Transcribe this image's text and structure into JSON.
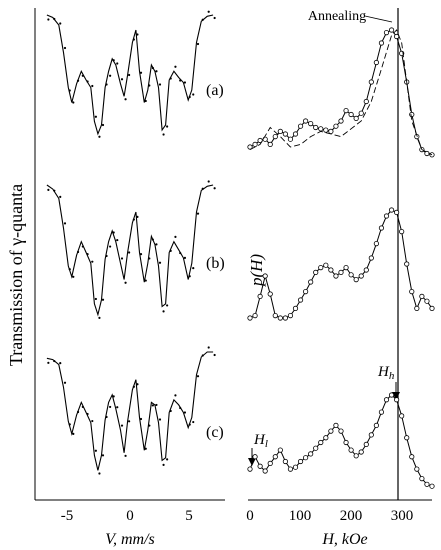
{
  "figure": {
    "y_label_left": "Transmission of γ-quanta",
    "y_label_right": "p(H)",
    "annotation_annealing": "Annealing",
    "annotation_hl": "Hl",
    "annotation_hh": "Hh",
    "panel_labels": [
      "(a)",
      "(b)",
      "(c)"
    ]
  },
  "chart_data": [
    {
      "type": "scatter",
      "panel": "left",
      "xlabel": "V, mm/s",
      "ylabel": "Transmission of γ-quanta",
      "xlim": [
        -8,
        8
      ],
      "x_ticks": [
        -5,
        0,
        5
      ],
      "subplots": [
        {
          "label": "(a)",
          "fit_x": [
            -7,
            -6.5,
            -6,
            -5.6,
            -5.2,
            -4.9,
            -4.5,
            -4.1,
            -3.7,
            -3.3,
            -3.0,
            -2.7,
            -2.4,
            -2.1,
            -1.8,
            -1.5,
            -1.2,
            -0.8,
            -0.5,
            -0.2,
            0.2,
            0.5,
            0.8,
            1.2,
            1.5,
            1.8,
            2.1,
            2.4,
            2.7,
            3.0,
            3.3,
            3.7,
            4.1,
            4.5,
            4.9,
            5.2,
            5.6,
            6.0,
            6.5,
            7.0
          ],
          "fit_y": [
            1.0,
            0.98,
            0.92,
            0.7,
            0.42,
            0.3,
            0.45,
            0.55,
            0.48,
            0.42,
            0.15,
            0.05,
            0.12,
            0.42,
            0.55,
            0.65,
            0.6,
            0.45,
            0.35,
            0.52,
            0.78,
            0.88,
            0.55,
            0.3,
            0.4,
            0.6,
            0.55,
            0.42,
            0.08,
            0.12,
            0.48,
            0.55,
            0.5,
            0.46,
            0.32,
            0.4,
            0.78,
            0.95,
            0.99,
            1.0
          ]
        },
        {
          "label": "(b)",
          "fit_x": [
            -7,
            -6.5,
            -6,
            -5.6,
            -5.2,
            -4.9,
            -4.5,
            -4.1,
            -3.7,
            -3.3,
            -3.0,
            -2.7,
            -2.4,
            -2.1,
            -1.8,
            -1.5,
            -1.2,
            -0.8,
            -0.5,
            -0.2,
            0.2,
            0.5,
            0.8,
            1.2,
            1.5,
            1.8,
            2.1,
            2.4,
            2.7,
            3.0,
            3.3,
            3.7,
            4.1,
            4.5,
            4.9,
            5.2,
            5.6,
            6.0,
            6.5,
            7.0
          ],
          "fit_y": [
            1.0,
            0.97,
            0.9,
            0.68,
            0.4,
            0.32,
            0.48,
            0.58,
            0.5,
            0.42,
            0.12,
            0.04,
            0.15,
            0.45,
            0.58,
            0.66,
            0.58,
            0.42,
            0.3,
            0.5,
            0.72,
            0.8,
            0.5,
            0.28,
            0.42,
            0.62,
            0.56,
            0.4,
            0.1,
            0.12,
            0.5,
            0.58,
            0.52,
            0.46,
            0.3,
            0.42,
            0.8,
            0.96,
            0.99,
            1.0
          ]
        },
        {
          "label": "(c)",
          "fit_x": [
            -7,
            -6.5,
            -6,
            -5.6,
            -5.2,
            -4.9,
            -4.5,
            -4.1,
            -3.7,
            -3.3,
            -3.0,
            -2.7,
            -2.4,
            -2.1,
            -1.8,
            -1.5,
            -1.2,
            -0.8,
            -0.5,
            -0.2,
            0.2,
            0.5,
            0.8,
            1.2,
            1.5,
            1.8,
            2.1,
            2.4,
            2.7,
            3.0,
            3.3,
            3.7,
            4.1,
            4.5,
            4.9,
            5.2,
            5.6,
            6.0,
            6.5,
            7.0
          ],
          "fit_y": [
            0.95,
            0.94,
            0.9,
            0.72,
            0.45,
            0.35,
            0.5,
            0.6,
            0.52,
            0.44,
            0.18,
            0.06,
            0.18,
            0.46,
            0.6,
            0.66,
            0.55,
            0.38,
            0.2,
            0.45,
            0.7,
            0.78,
            0.48,
            0.22,
            0.38,
            0.6,
            0.58,
            0.44,
            0.14,
            0.16,
            0.52,
            0.62,
            0.58,
            0.52,
            0.4,
            0.48,
            0.82,
            0.96,
            1.0,
            1.0
          ]
        }
      ]
    },
    {
      "type": "line",
      "panel": "right",
      "xlabel": "H, kOe",
      "ylabel": "p(H)",
      "xlim": [
        0,
        360
      ],
      "x_ticks": [
        0,
        100,
        200,
        300
      ],
      "vertical_line_x": 290,
      "subplots": [
        {
          "x": [
            0,
            10,
            20,
            30,
            40,
            50,
            60,
            70,
            80,
            90,
            100,
            110,
            120,
            130,
            140,
            150,
            160,
            170,
            180,
            190,
            200,
            210,
            220,
            230,
            240,
            250,
            260,
            270,
            280,
            290,
            300,
            310,
            320,
            330,
            340,
            350,
            360
          ],
          "y": [
            0.1,
            0.12,
            0.15,
            0.16,
            0.12,
            0.18,
            0.22,
            0.2,
            0.16,
            0.2,
            0.26,
            0.3,
            0.28,
            0.25,
            0.24,
            0.23,
            0.22,
            0.26,
            0.3,
            0.38,
            0.35,
            0.32,
            0.36,
            0.45,
            0.6,
            0.75,
            0.9,
            0.98,
            1.0,
            0.95,
            0.82,
            0.6,
            0.35,
            0.18,
            0.08,
            0.05,
            0.04
          ],
          "annealing_x": [
            0,
            20,
            40,
            60,
            80,
            100,
            120,
            140,
            160,
            180,
            200,
            220,
            240,
            260,
            280,
            290,
            300,
            310,
            320,
            340,
            360
          ],
          "annealing_y": [
            0.08,
            0.12,
            0.25,
            0.18,
            0.1,
            0.12,
            0.18,
            0.22,
            0.2,
            0.18,
            0.24,
            0.3,
            0.45,
            0.7,
            0.96,
            1.0,
            0.9,
            0.6,
            0.3,
            0.08,
            0.04
          ]
        },
        {
          "x": [
            0,
            10,
            20,
            30,
            40,
            50,
            60,
            70,
            80,
            90,
            100,
            110,
            120,
            130,
            140,
            150,
            160,
            170,
            180,
            190,
            200,
            210,
            220,
            230,
            240,
            250,
            260,
            270,
            280,
            290,
            300,
            310,
            320,
            330,
            340,
            350,
            360
          ],
          "y": [
            0.1,
            0.12,
            0.28,
            0.45,
            0.3,
            0.12,
            0.1,
            0.1,
            0.12,
            0.18,
            0.25,
            0.32,
            0.4,
            0.48,
            0.52,
            0.54,
            0.5,
            0.45,
            0.48,
            0.52,
            0.46,
            0.42,
            0.45,
            0.5,
            0.6,
            0.72,
            0.85,
            0.95,
            1.0,
            0.98,
            0.82,
            0.55,
            0.32,
            0.18,
            0.28,
            0.24,
            0.18
          ]
        },
        {
          "x": [
            0,
            10,
            20,
            30,
            40,
            50,
            60,
            70,
            80,
            90,
            100,
            110,
            120,
            130,
            140,
            150,
            160,
            170,
            180,
            190,
            200,
            210,
            220,
            230,
            240,
            250,
            260,
            270,
            280,
            290,
            300,
            310,
            320,
            330,
            340,
            350,
            360
          ],
          "y": [
            0.22,
            0.35,
            0.25,
            0.2,
            0.28,
            0.35,
            0.42,
            0.3,
            0.22,
            0.24,
            0.3,
            0.34,
            0.38,
            0.44,
            0.5,
            0.55,
            0.62,
            0.68,
            0.62,
            0.5,
            0.42,
            0.36,
            0.4,
            0.48,
            0.58,
            0.68,
            0.82,
            0.95,
            1.0,
            0.95,
            0.78,
            0.55,
            0.35,
            0.22,
            0.12,
            0.06,
            0.04
          ]
        }
      ]
    }
  ]
}
